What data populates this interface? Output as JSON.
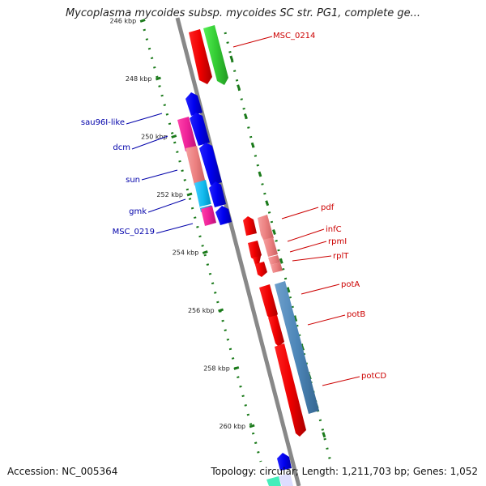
{
  "title": "Mycoplasma mycoides subsp. mycoides SC str. PG1, complete ge...",
  "footer": {
    "accession": "Accession: NC_005364",
    "summary": "Topology: circular; Length: 1,211,703 bp; Genes: 1,052"
  },
  "ticks": [
    {
      "label": "246 kbp",
      "pos_kbp": 246
    },
    {
      "label": "248 kbp",
      "pos_kbp": 248
    },
    {
      "label": "250 kbp",
      "pos_kbp": 250
    },
    {
      "label": "252 kbp",
      "pos_kbp": 252
    },
    {
      "label": "254 kbp",
      "pos_kbp": 254
    },
    {
      "label": "256 kbp",
      "pos_kbp": 256
    },
    {
      "label": "258 kbp",
      "pos_kbp": 258
    },
    {
      "label": "260 kbp",
      "pos_kbp": 260
    }
  ],
  "genes_left": [
    {
      "label": "sau96I-like",
      "color": "#0000cc"
    },
    {
      "label": "dcm",
      "color": "#0000cc"
    },
    {
      "label": "sun",
      "color": "#0000cc"
    },
    {
      "label": "gmk",
      "color": "#0000cc"
    },
    {
      "label": "MSC_0219",
      "color": "#0000cc"
    }
  ],
  "genes_right": [
    {
      "label": "MSC_0214",
      "color": "#cc0000"
    },
    {
      "label": "pdf",
      "color": "#cc0000"
    },
    {
      "label": "infC",
      "color": "#cc0000"
    },
    {
      "label": "rpmI",
      "color": "#cc0000"
    },
    {
      "label": "rplT",
      "color": "#cc0000"
    },
    {
      "label": "potA",
      "color": "#cc0000"
    },
    {
      "label": "potB",
      "color": "#cc0000"
    },
    {
      "label": "potCD",
      "color": "#cc0000"
    }
  ],
  "colors": {
    "backbone": "#888888",
    "tick": "#1a7a1a",
    "cds_red": "#ee1111",
    "cds_pink": "#ee8888",
    "cds_green": "#33cc33",
    "cds_blue": "#0000ee",
    "cds_magenta": "#ee2299",
    "cds_cyan": "#11bbee",
    "cds_steel": "#4d86b8"
  }
}
